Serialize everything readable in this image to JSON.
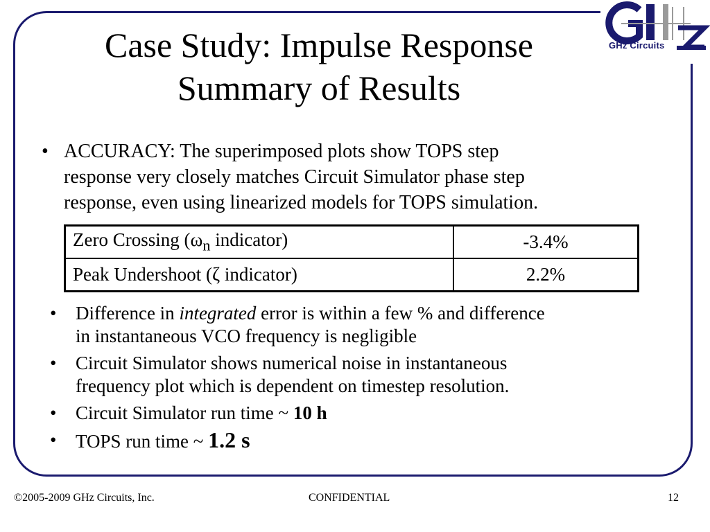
{
  "title": {
    "line1": "Case Study: Impulse Response",
    "line2": "Summary of Results"
  },
  "logo": {
    "text": "GHz Circuits",
    "icon": "ghz-circuits-logo"
  },
  "bullet_main": {
    "line1": "ACCURACY: The superimposed plots show TOPS step",
    "line2": "response very closely matches Circuit Simulator phase step",
    "line3": "response, even using linearized models for TOPS simulation."
  },
  "table": {
    "rows": [
      {
        "label_pre": "Zero Crossing (",
        "symbol": "ω",
        "sub": "n",
        "label_post": " indicator)",
        "value": "-3.4%"
      },
      {
        "label_pre": "Peak Undershoot (",
        "symbol": "ζ",
        "sub": "",
        "label_post": " indicator)",
        "value": "2.2%"
      }
    ]
  },
  "bullets": [
    {
      "pre": "Difference in ",
      "em": "integrated",
      "post": " error is within a few % and difference",
      "line2": "in instantaneous VCO frequency is negligible"
    },
    {
      "line1": "Circuit Simulator shows numerical noise in instantaneous",
      "line2": "frequency plot which is dependent on timestep resolution."
    },
    {
      "text": "Circuit Simulator run time ~ ",
      "bold": "10 h"
    },
    {
      "text": "TOPS run time ~ ",
      "bold": "1.2 s"
    }
  ],
  "bullet_char": "•",
  "footer": {
    "copyright": "©2005-2009 GHz  Circuits, Inc.",
    "confidential": "CONFIDENTIAL",
    "page": "12"
  },
  "colors": {
    "frame": "#1a1a6e",
    "logo_blue": "#1a1a6e",
    "logo_gray": "#9a9a9a"
  }
}
